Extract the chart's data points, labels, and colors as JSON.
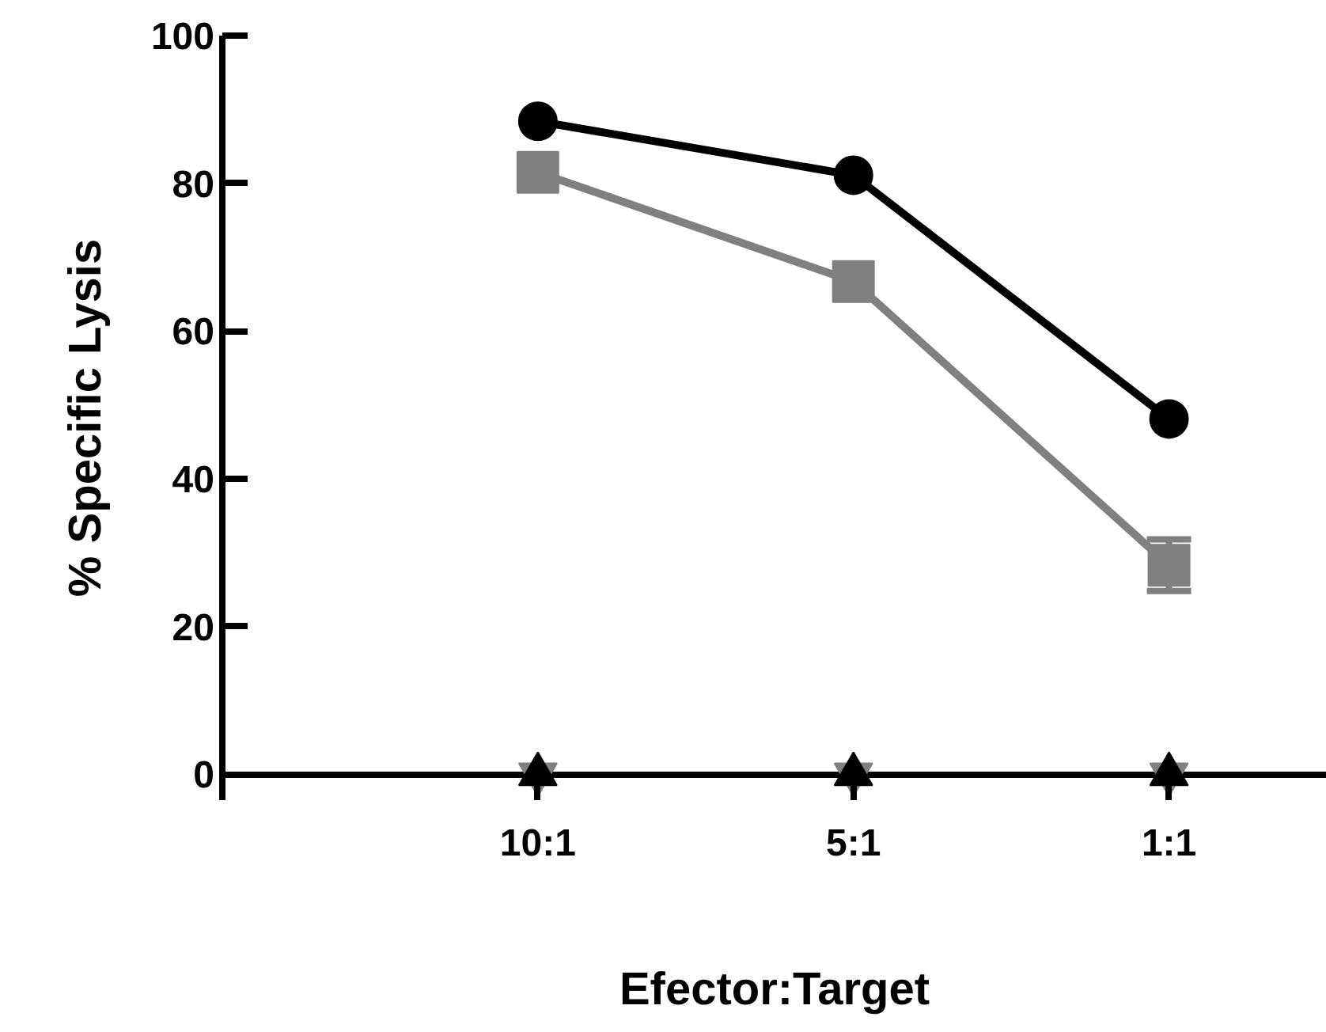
{
  "chart_data": {
    "type": "line",
    "xlabel": "Efector:Target",
    "ylabel": "% Specific Lysis",
    "categories": [
      "10:1",
      "5:1",
      "1:1"
    ],
    "ylim": [
      -3.5,
      100
    ],
    "yticks": [
      0,
      20,
      40,
      60,
      80,
      100
    ],
    "grid": false,
    "series": [
      {
        "color": "#000000",
        "values": [
          88.4,
          81.1,
          48.1
        ],
        "marker": "circle"
      },
      {
        "color": "#808080",
        "values": [
          81.5,
          66.7,
          28.3
        ],
        "marker": "square",
        "errors": [
          null,
          null,
          3.5
        ]
      },
      {
        "type": "scatter",
        "color": "#808080",
        "values": [
          0,
          0,
          0
        ],
        "marker": "triangle_down"
      },
      {
        "type": "scatter",
        "color": "#000000",
        "values": [
          0,
          0,
          0
        ],
        "marker": "triangle"
      }
    ]
  }
}
